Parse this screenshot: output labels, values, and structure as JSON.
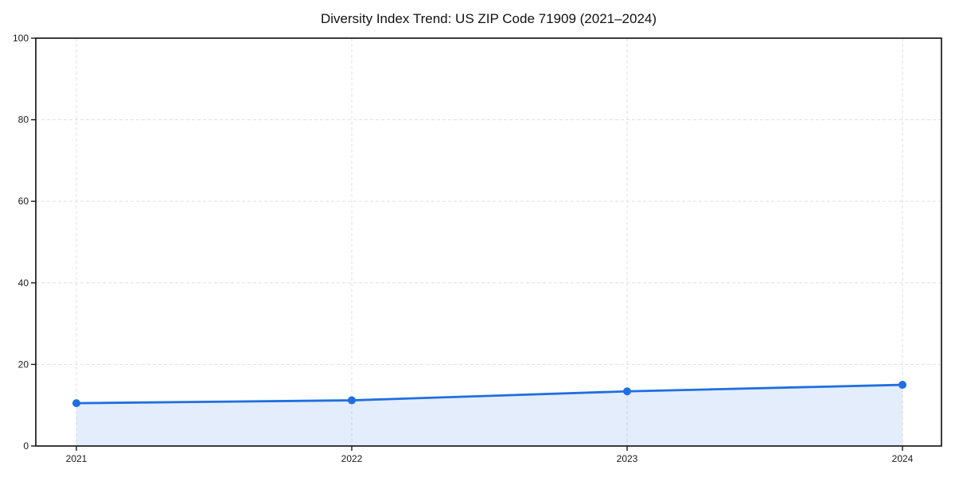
{
  "chart_data": {
    "type": "area",
    "title": "Diversity Index Trend: US ZIP Code 71909 (2021–2024)",
    "categories": [
      "2021",
      "2022",
      "2023",
      "2024"
    ],
    "values": [
      10.5,
      11.2,
      13.4,
      15.0
    ],
    "xlabel": "",
    "ylabel": "",
    "ylim": [
      0,
      100
    ],
    "yticks": [
      0,
      20,
      40,
      60,
      80,
      100
    ],
    "grid": true,
    "grid_style": "dashed",
    "legend": "none",
    "colors": {
      "line": "#1f6fe0",
      "fill": "#1f6fe0",
      "fill_opacity": 0.12,
      "grid": "#e3e3e3",
      "axis": "#1a1a1a",
      "background": "#ffffff"
    },
    "marker": "circle"
  }
}
